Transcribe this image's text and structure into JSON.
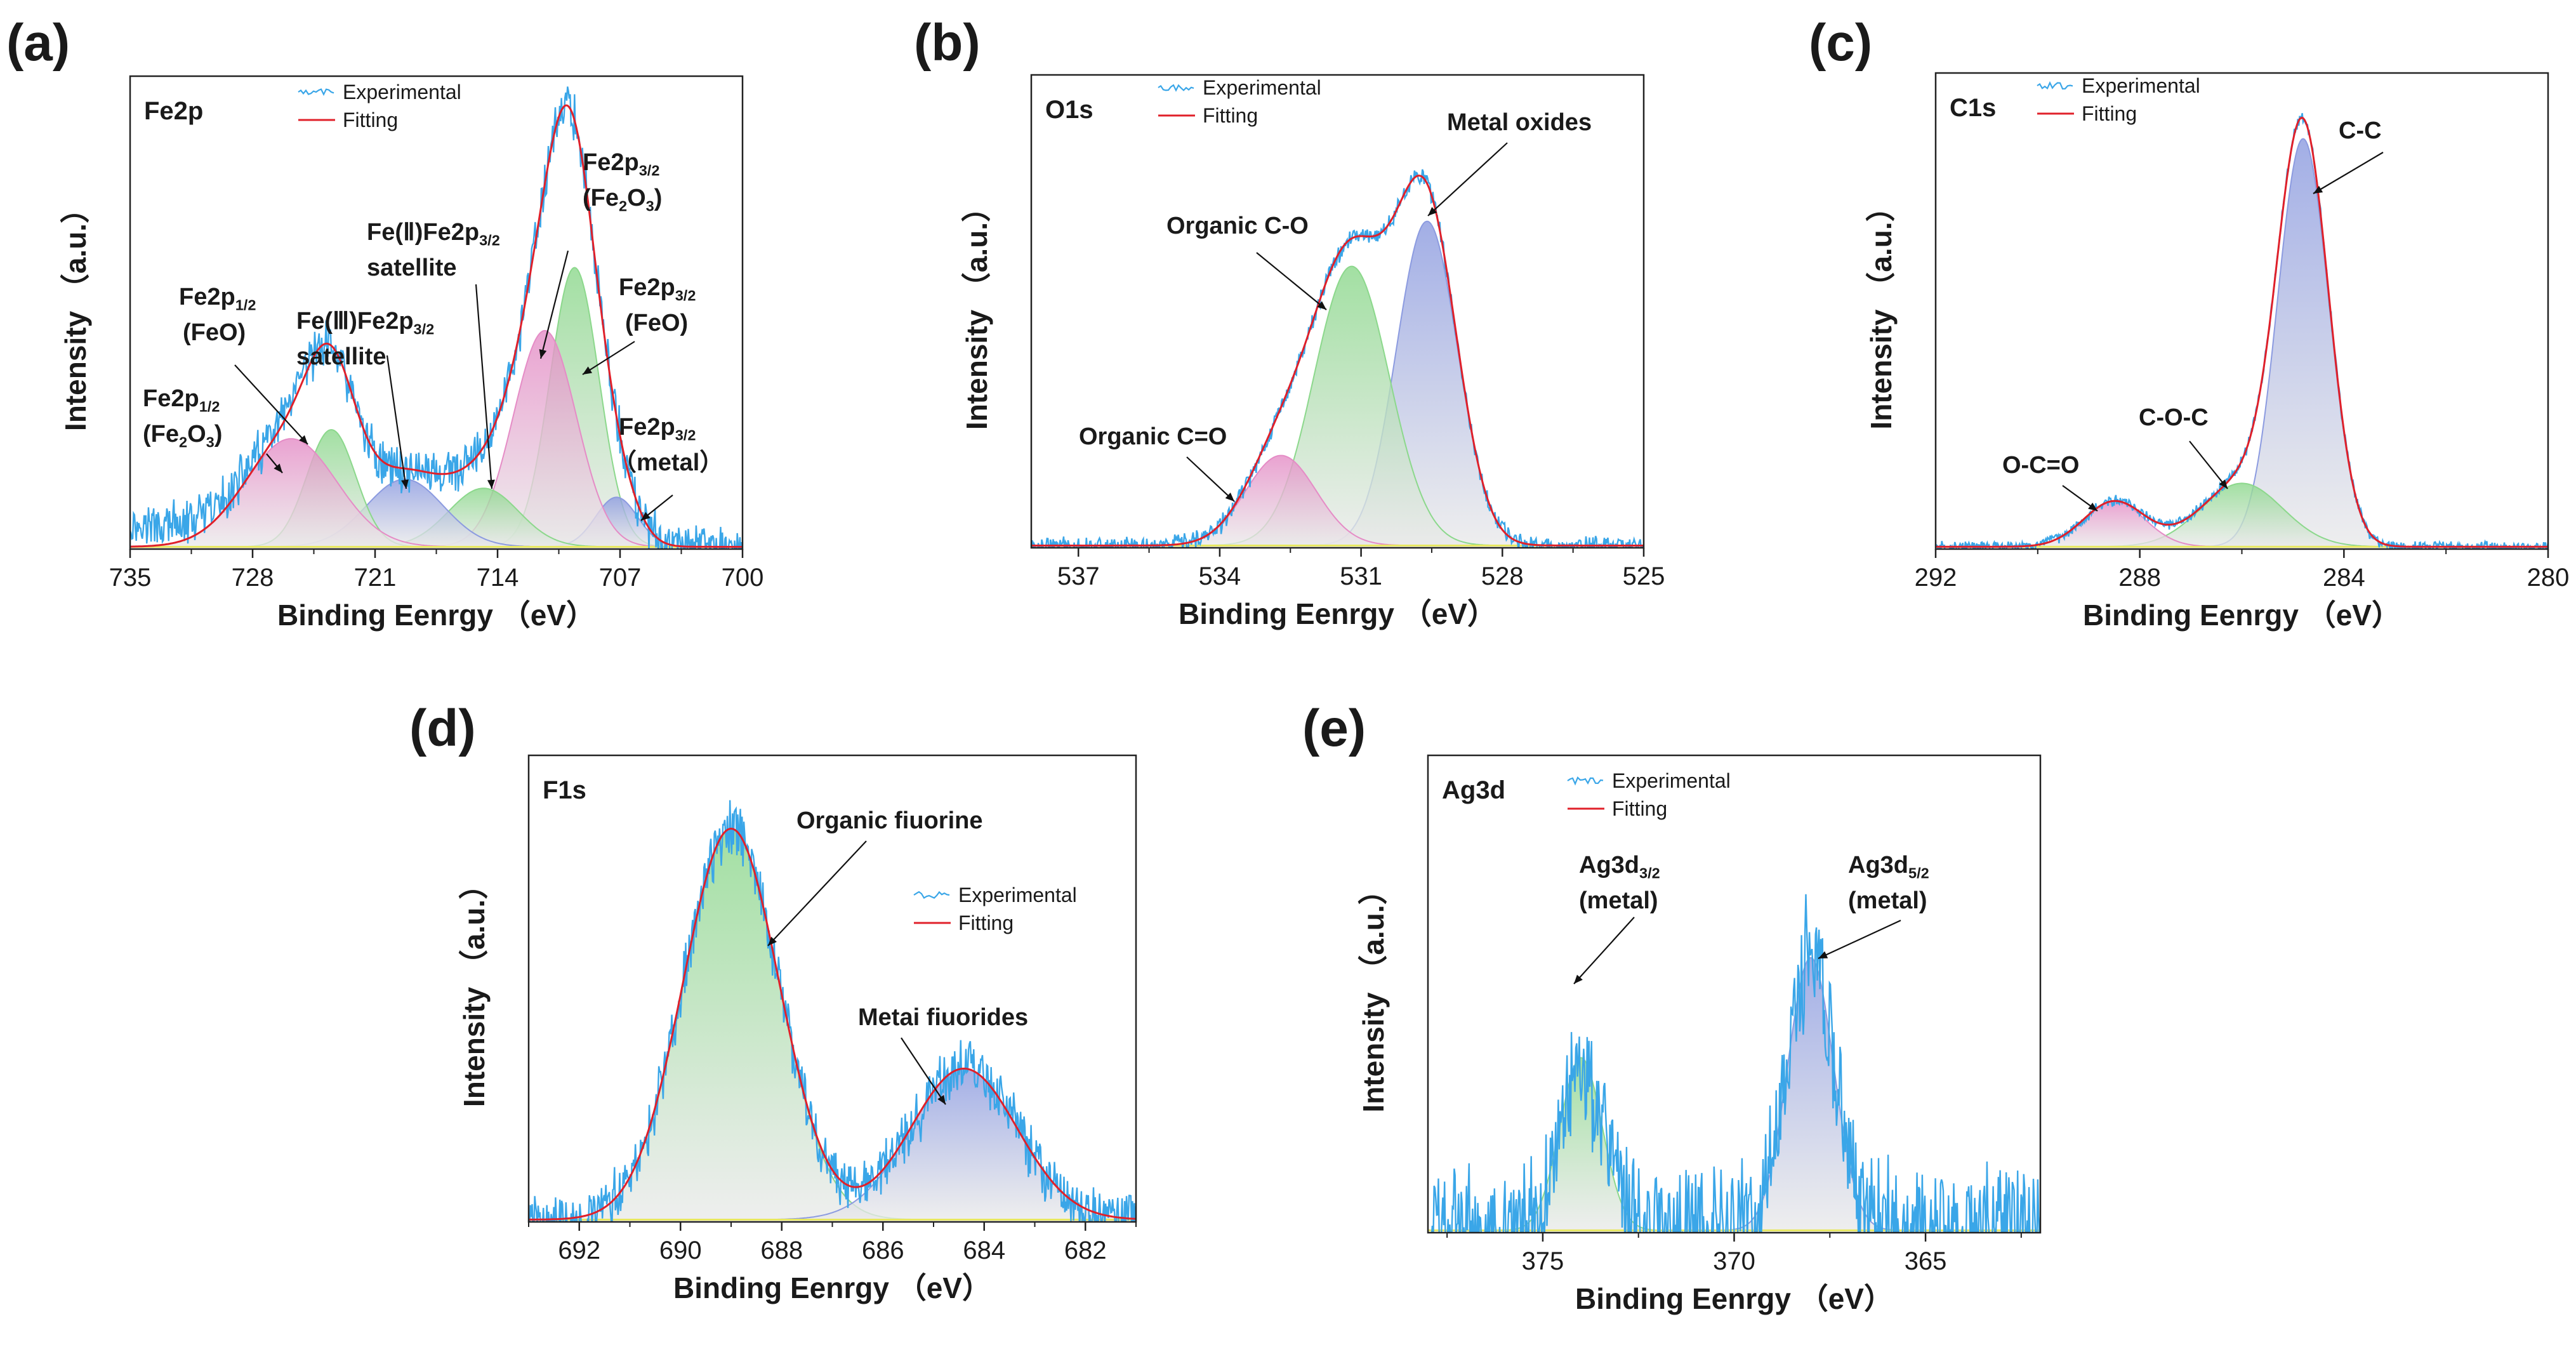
{
  "colors": {
    "experimental": "#3aa6e8",
    "fitting": "#e0202a",
    "baseline": "#e8e860",
    "green": "#8cd88c",
    "blue": "#8c9be0",
    "pink": "#e58cc6",
    "text": "#1a1a1a"
  },
  "legend": {
    "experimental": "Experimental",
    "fitting": "Fitting"
  },
  "xlabel": "Binding Eenrgy （eV）",
  "ylabel": "Intensity （a.u.）",
  "chart_data": [
    {
      "panel": "(a)",
      "element": "Fe2p",
      "type": "line",
      "xlim": [
        735,
        700
      ],
      "xticks": [
        735,
        728,
        721,
        714,
        707,
        700
      ],
      "ylim": [
        0,
        1.05
      ],
      "legend_position": "top-left",
      "peaks": [
        {
          "center": 709.6,
          "height": 0.62,
          "width": 1.4,
          "color": "green"
        },
        {
          "center": 707.2,
          "height": 0.11,
          "width": 1.2,
          "color": "blue"
        },
        {
          "center": 711.3,
          "height": 0.48,
          "width": 1.8,
          "color": "pink"
        },
        {
          "center": 714.8,
          "height": 0.13,
          "width": 2.0,
          "color": "green"
        },
        {
          "center": 719.3,
          "height": 0.15,
          "width": 2.2,
          "color": "blue"
        },
        {
          "center": 723.5,
          "height": 0.26,
          "width": 1.4,
          "color": "green"
        },
        {
          "center": 725.8,
          "height": 0.24,
          "width": 2.6,
          "color": "pink"
        }
      ],
      "noise": 0.05,
      "annotations": [
        {
          "text": "Fe2p",
          "sub": "1/2",
          "text2": "(Fe",
          "sub2": "2",
          "text3": "O",
          "sub3": "3",
          "text4": ")"
        },
        {
          "text": "Fe2p",
          "sub": "1/2",
          "text2": "(FeO)"
        },
        {
          "text": "Fe(Ⅲ)Fe2p",
          "sub": "3/2",
          "text2": "satellite"
        },
        {
          "text": "Fe(Ⅱ)Fe2p",
          "sub": "3/2",
          "text2": "satellite"
        },
        {
          "text": "Fe2p",
          "sub": "3/2",
          "text2": "(Fe",
          "sub2": "2",
          "text3": "O",
          "sub3": "3",
          "text4": ")"
        },
        {
          "text": "Fe2p",
          "sub": "3/2",
          "text2": "(FeO)"
        },
        {
          "text": "Fe2p",
          "sub": "3/2",
          "text2": "（metal）"
        }
      ]
    },
    {
      "panel": "(b)",
      "element": "O1s",
      "type": "line",
      "xlim": [
        538,
        525
      ],
      "xticks": [
        537,
        534,
        531,
        528,
        525
      ],
      "ylim": [
        0,
        1.05
      ],
      "legend_position": "top-left",
      "peaks": [
        {
          "center": 529.6,
          "height": 0.72,
          "width": 0.65,
          "color": "blue"
        },
        {
          "center": 531.2,
          "height": 0.62,
          "width": 0.8,
          "color": "green"
        },
        {
          "center": 532.7,
          "height": 0.2,
          "width": 0.75,
          "color": "pink"
        }
      ],
      "noise": 0.02,
      "annotations": [
        {
          "text": "Organic C=O"
        },
        {
          "text": "Organic C-O"
        },
        {
          "text": "Metal oxides"
        }
      ]
    },
    {
      "panel": "(c)",
      "element": "C1s",
      "type": "line",
      "xlim": [
        292,
        280
      ],
      "xticks": [
        292,
        288,
        284,
        280
      ],
      "ylim": [
        0,
        1.05
      ],
      "legend_position": "top-left",
      "peaks": [
        {
          "center": 284.8,
          "height": 0.9,
          "width": 0.5,
          "color": "blue"
        },
        {
          "center": 286.0,
          "height": 0.14,
          "width": 0.8,
          "color": "green"
        },
        {
          "center": 288.5,
          "height": 0.1,
          "width": 0.6,
          "color": "pink"
        }
      ],
      "noise": 0.012,
      "annotations": [
        {
          "text": "O-C=O"
        },
        {
          "text": "C-O-C"
        },
        {
          "text": "C-C"
        }
      ]
    },
    {
      "panel": "(d)",
      "element": "F1s",
      "type": "line",
      "xlim": [
        693,
        681
      ],
      "xticks": [
        692,
        690,
        688,
        686,
        684,
        682
      ],
      "ylim": [
        0,
        1.05
      ],
      "legend_position": "top-right",
      "peaks": [
        {
          "center": 689.0,
          "height": 0.88,
          "width": 0.95,
          "color": "green"
        },
        {
          "center": 684.4,
          "height": 0.34,
          "width": 1.05,
          "color": "blue"
        }
      ],
      "noise": 0.06,
      "annotations": [
        {
          "text": "Organic fiuorine"
        },
        {
          "text": "Metai fiuorides"
        }
      ]
    },
    {
      "panel": "(e)",
      "element": "Ag3d",
      "type": "line",
      "xlim": [
        378,
        362
      ],
      "xticks": [
        375,
        370,
        365
      ],
      "ylim": [
        0,
        1.05
      ],
      "legend_position": "top-left",
      "peaks": [
        {
          "center": 374.0,
          "height": 0.38,
          "width": 0.55,
          "color": "green"
        },
        {
          "center": 368.0,
          "height": 0.6,
          "width": 0.6,
          "color": "blue"
        }
      ],
      "noise": 0.14,
      "annotations": [
        {
          "text": "Ag3d",
          "sub": "3/2",
          "text2": "(metal)"
        },
        {
          "text": "Ag3d",
          "sub": "5/2",
          "text2": "(metal)"
        }
      ]
    }
  ]
}
